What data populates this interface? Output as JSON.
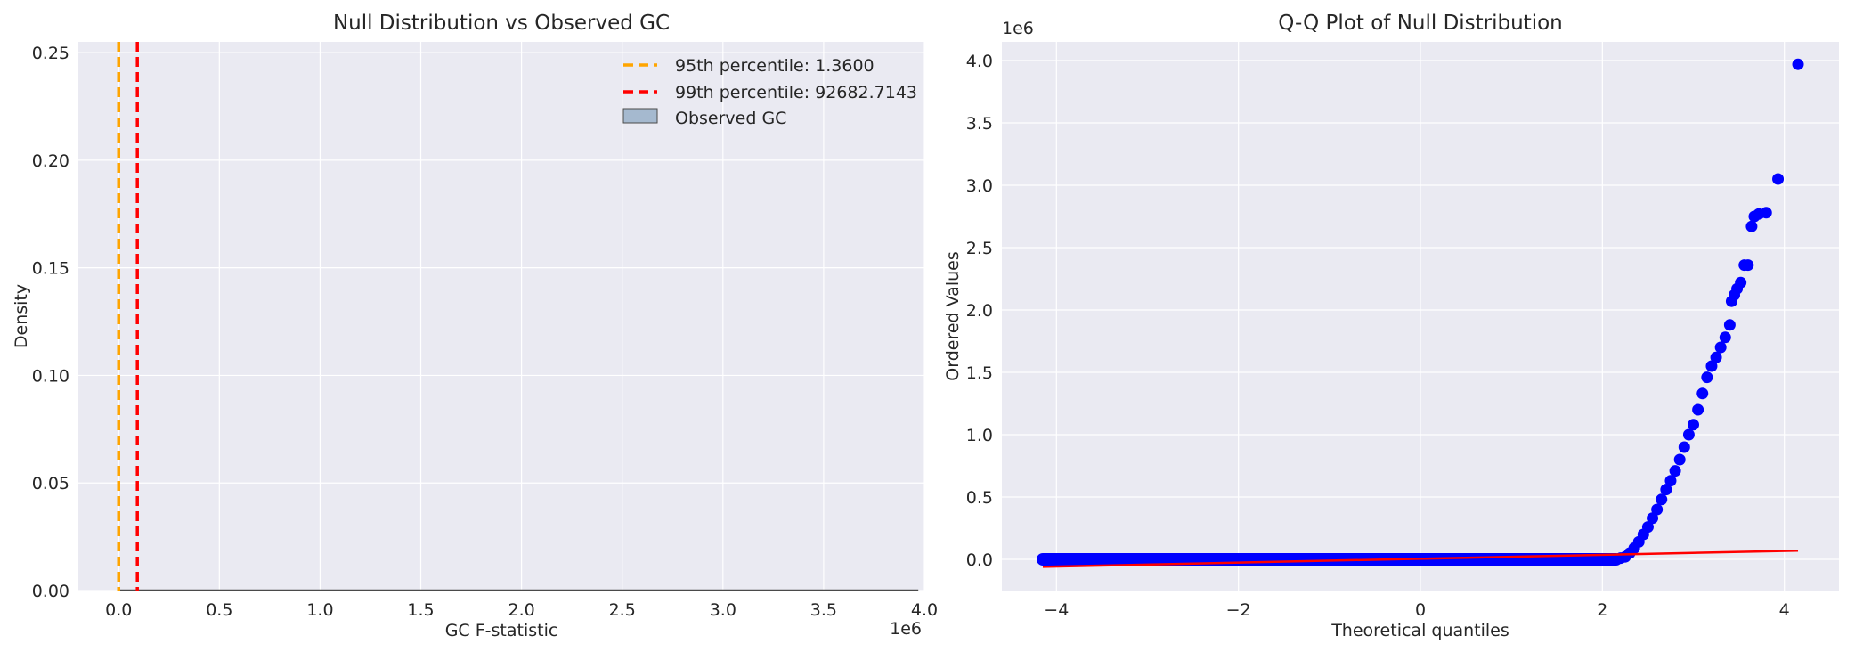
{
  "chart_data": [
    {
      "type": "histogram",
      "title": "Null Distribution vs Observed GC",
      "xlabel": "GC F-statistic",
      "ylabel": "Density",
      "x_offset_label": "1e6",
      "xlim": [
        -0.2,
        4.0
      ],
      "ylim": [
        0,
        0.255
      ],
      "xticks": [
        0.0,
        0.5,
        1.0,
        1.5,
        2.0,
        2.5,
        3.0,
        3.5,
        4.0
      ],
      "xtick_labels": [
        "0.0",
        "0.5",
        "1.0",
        "1.5",
        "2.0",
        "2.5",
        "3.0",
        "3.5",
        "4.0"
      ],
      "yticks": [
        0.0,
        0.05,
        0.1,
        0.15,
        0.2,
        0.25
      ],
      "ytick_labels": [
        "0.00",
        "0.05",
        "0.10",
        "0.15",
        "0.20",
        "0.25"
      ],
      "histogram_range": [
        0.0,
        3.97
      ],
      "observed_gc": 0.0,
      "vlines": [
        {
          "label": "95th percentile: 1.3600",
          "value": 1.36e-06,
          "color": "#ffa500",
          "style": "dashed"
        },
        {
          "label": "99th percentile: 92682.7143",
          "value": 0.0926827143,
          "color": "#ff0000",
          "style": "dashed"
        }
      ],
      "legend": {
        "position": "top-right",
        "entries": [
          {
            "label": "95th percentile: 1.3600",
            "kind": "line",
            "color": "#ffa500"
          },
          {
            "label": "99th percentile: 92682.7143",
            "kind": "line",
            "color": "#ff0000"
          },
          {
            "label": "Observed GC",
            "kind": "patch",
            "color": "#a5b9cf"
          }
        ]
      },
      "grid": true
    },
    {
      "type": "scatter",
      "title": "Q-Q Plot of Null Distribution",
      "xlabel": "Theoretical quantiles",
      "ylabel": "Ordered Values",
      "y_offset_label": "1e6",
      "xlim": [
        -4.6,
        4.6
      ],
      "ylim": [
        -0.25,
        4.15
      ],
      "xticks": [
        -4,
        -2,
        0,
        2,
        4
      ],
      "xtick_labels": [
        "−4",
        "−2",
        "0",
        "2",
        "4"
      ],
      "yticks": [
        0.0,
        0.5,
        1.0,
        1.5,
        2.0,
        2.5,
        3.0,
        3.5,
        4.0
      ],
      "ytick_labels": [
        "0.0",
        "0.5",
        "1.0",
        "1.5",
        "2.0",
        "2.5",
        "3.0",
        "3.5",
        "4.0"
      ],
      "points_color": "#0000ff",
      "fit_line": {
        "color": "#ff0000",
        "x": [
          -4.15,
          4.15
        ],
        "y": [
          -0.06,
          0.07
        ]
      },
      "points": [
        [
          -4.15,
          0.0
        ],
        [
          -3.93,
          0.0
        ],
        [
          -3.8,
          0.0
        ],
        [
          -3.7,
          0.0
        ],
        [
          -3.62,
          0.0
        ],
        [
          -3.55,
          0.0
        ],
        [
          -3.48,
          0.0
        ],
        [
          -3.42,
          0.0
        ],
        [
          -3.36,
          0.0
        ],
        [
          -3.3,
          0.0
        ],
        [
          -3.24,
          0.0
        ],
        [
          -3.18,
          0.0
        ],
        [
          -3.12,
          0.0
        ],
        [
          -3.06,
          0.0
        ],
        [
          -3.0,
          0.0
        ],
        [
          -2.9,
          0.0
        ],
        [
          -2.8,
          0.0
        ],
        [
          -2.7,
          0.0
        ],
        [
          -2.6,
          0.0
        ],
        [
          -2.5,
          0.0
        ],
        [
          -2.4,
          0.0
        ],
        [
          -2.3,
          0.0
        ],
        [
          -2.2,
          0.0
        ],
        [
          -2.1,
          0.0
        ],
        [
          -2.0,
          0.0
        ],
        [
          -1.9,
          0.0
        ],
        [
          -1.8,
          0.0
        ],
        [
          -1.7,
          0.0
        ],
        [
          -1.6,
          0.0
        ],
        [
          -1.5,
          0.0
        ],
        [
          -1.4,
          0.0
        ],
        [
          -1.3,
          0.0
        ],
        [
          -1.2,
          0.0
        ],
        [
          -1.1,
          0.0
        ],
        [
          -1.0,
          0.0
        ],
        [
          -0.9,
          0.0
        ],
        [
          -0.8,
          0.0
        ],
        [
          -0.7,
          0.0
        ],
        [
          -0.6,
          0.0
        ],
        [
          -0.5,
          0.0
        ],
        [
          -0.4,
          0.0
        ],
        [
          -0.3,
          0.0
        ],
        [
          -0.2,
          0.0
        ],
        [
          -0.1,
          0.0
        ],
        [
          0.0,
          0.0
        ],
        [
          0.1,
          0.0
        ],
        [
          0.2,
          0.0
        ],
        [
          0.3,
          0.0
        ],
        [
          0.4,
          0.0
        ],
        [
          0.5,
          0.0
        ],
        [
          0.6,
          0.0
        ],
        [
          0.7,
          0.0
        ],
        [
          0.8,
          0.0
        ],
        [
          0.9,
          0.0
        ],
        [
          1.0,
          0.0
        ],
        [
          1.1,
          0.0
        ],
        [
          1.2,
          0.0
        ],
        [
          1.3,
          0.0
        ],
        [
          1.4,
          0.0
        ],
        [
          1.5,
          0.0
        ],
        [
          1.6,
          0.0
        ],
        [
          1.7,
          0.0
        ],
        [
          1.8,
          0.0
        ],
        [
          1.9,
          0.0
        ],
        [
          2.0,
          0.0
        ],
        [
          2.05,
          0.0
        ],
        [
          2.1,
          0.0
        ],
        [
          2.15,
          0.0
        ],
        [
          2.2,
          0.01
        ],
        [
          2.25,
          0.02
        ],
        [
          2.3,
          0.05
        ],
        [
          2.35,
          0.09
        ],
        [
          2.4,
          0.14
        ],
        [
          2.45,
          0.2
        ],
        [
          2.5,
          0.26
        ],
        [
          2.55,
          0.33
        ],
        [
          2.6,
          0.4
        ],
        [
          2.65,
          0.48
        ],
        [
          2.7,
          0.56
        ],
        [
          2.75,
          0.63
        ],
        [
          2.8,
          0.71
        ],
        [
          2.85,
          0.8
        ],
        [
          2.9,
          0.9
        ],
        [
          2.95,
          1.0
        ],
        [
          3.0,
          1.08
        ],
        [
          3.05,
          1.2
        ],
        [
          3.1,
          1.33
        ],
        [
          3.15,
          1.46
        ],
        [
          3.2,
          1.55
        ],
        [
          3.25,
          1.62
        ],
        [
          3.3,
          1.7
        ],
        [
          3.35,
          1.78
        ],
        [
          3.4,
          1.88
        ],
        [
          3.42,
          2.07
        ],
        [
          3.45,
          2.12
        ],
        [
          3.48,
          2.17
        ],
        [
          3.52,
          2.22
        ],
        [
          3.56,
          2.36
        ],
        [
          3.6,
          2.36
        ],
        [
          3.64,
          2.67
        ],
        [
          3.67,
          2.75
        ],
        [
          3.72,
          2.77
        ],
        [
          3.8,
          2.78
        ],
        [
          3.93,
          3.05
        ],
        [
          4.15,
          3.97
        ]
      ],
      "grid": true
    }
  ]
}
